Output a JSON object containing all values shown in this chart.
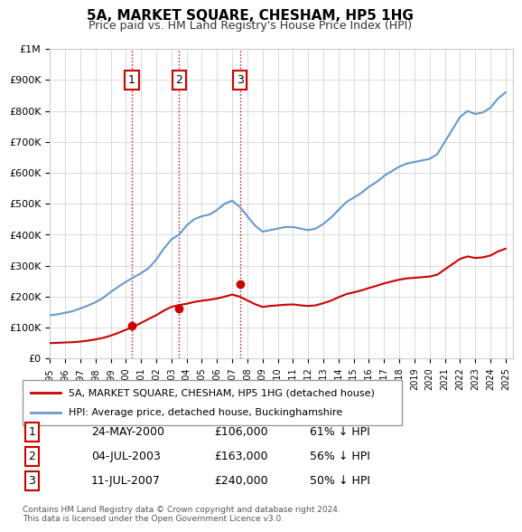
{
  "title": "5A, MARKET SQUARE, CHESHAM, HP5 1HG",
  "subtitle": "Price paid vs. HM Land Registry's House Price Index (HPI)",
  "legend_property": "5A, MARKET SQUARE, CHESHAM, HP5 1HG (detached house)",
  "legend_hpi": "HPI: Average price, detached house, Buckinghamshire",
  "footer": "Contains HM Land Registry data © Crown copyright and database right 2024.\nThis data is licensed under the Open Government Licence v3.0.",
  "sales": [
    {
      "num": 1,
      "date": "24-MAY-2000",
      "price": 106000,
      "pct": "61%",
      "year": 2000.39
    },
    {
      "num": 2,
      "date": "04-JUL-2003",
      "price": 163000,
      "pct": "56%",
      "year": 2003.5
    },
    {
      "num": 3,
      "date": "11-JUL-2007",
      "price": 240000,
      "pct": "50%",
      "year": 2007.52
    }
  ],
  "property_color": "#cc0000",
  "hpi_color": "#6699cc",
  "vline_color": "#cc0000",
  "ylim": [
    0,
    1000000
  ],
  "xlim_start": 1995.0,
  "xlim_end": 2025.5,
  "hpi_x": [
    1995,
    1995.5,
    1996,
    1996.5,
    1997,
    1997.5,
    1998,
    1998.5,
    1999,
    1999.5,
    2000,
    2000.5,
    2001,
    2001.5,
    2002,
    2002.5,
    2003,
    2003.5,
    2004,
    2004.5,
    2005,
    2005.5,
    2006,
    2006.5,
    2007,
    2007.5,
    2008,
    2008.5,
    2009,
    2009.5,
    2010,
    2010.5,
    2011,
    2011.5,
    2012,
    2012.5,
    2013,
    2013.5,
    2014,
    2014.5,
    2015,
    2015.5,
    2016,
    2016.5,
    2017,
    2017.5,
    2018,
    2018.5,
    2019,
    2019.5,
    2020,
    2020.5,
    2021,
    2021.5,
    2022,
    2022.5,
    2023,
    2023.5,
    2024,
    2024.5,
    2025
  ],
  "hpi_y": [
    140000,
    143000,
    148000,
    153000,
    162000,
    171000,
    182000,
    196000,
    215000,
    232000,
    248000,
    262000,
    276000,
    292000,
    320000,
    355000,
    385000,
    400000,
    430000,
    450000,
    460000,
    465000,
    480000,
    500000,
    510000,
    490000,
    460000,
    430000,
    410000,
    415000,
    420000,
    425000,
    425000,
    420000,
    415000,
    420000,
    435000,
    455000,
    480000,
    505000,
    520000,
    535000,
    555000,
    570000,
    590000,
    605000,
    620000,
    630000,
    635000,
    640000,
    645000,
    660000,
    700000,
    740000,
    780000,
    800000,
    790000,
    795000,
    810000,
    840000,
    860000
  ],
  "prop_x": [
    1995,
    1995.5,
    1996,
    1996.5,
    1997,
    1997.5,
    1998,
    1998.5,
    1999,
    1999.5,
    2000,
    2000.5,
    2001,
    2001.5,
    2002,
    2002.5,
    2003,
    2003.5,
    2004,
    2004.5,
    2005,
    2005.5,
    2006,
    2006.5,
    2007,
    2007.5,
    2008,
    2008.5,
    2009,
    2009.5,
    2010,
    2010.5,
    2011,
    2011.5,
    2012,
    2012.5,
    2013,
    2013.5,
    2014,
    2014.5,
    2015,
    2015.5,
    2016,
    2016.5,
    2017,
    2017.5,
    2018,
    2018.5,
    2019,
    2019.5,
    2020,
    2020.5,
    2021,
    2021.5,
    2022,
    2022.5,
    2023,
    2023.5,
    2024,
    2024.5,
    2025
  ],
  "prop_y": [
    50000,
    51000,
    52000,
    53000,
    55000,
    58000,
    62000,
    67000,
    74000,
    83000,
    93000,
    103000,
    115000,
    128000,
    140000,
    155000,
    167000,
    173000,
    177000,
    183000,
    187000,
    190000,
    194000,
    200000,
    207000,
    200000,
    188000,
    176000,
    167000,
    170000,
    172000,
    174000,
    175000,
    172000,
    170000,
    172000,
    179000,
    187000,
    198000,
    208000,
    214000,
    220000,
    228000,
    235000,
    243000,
    249000,
    255000,
    259000,
    261000,
    263000,
    265000,
    271000,
    288000,
    305000,
    322000,
    330000,
    325000,
    327000,
    333000,
    346000,
    355000
  ]
}
